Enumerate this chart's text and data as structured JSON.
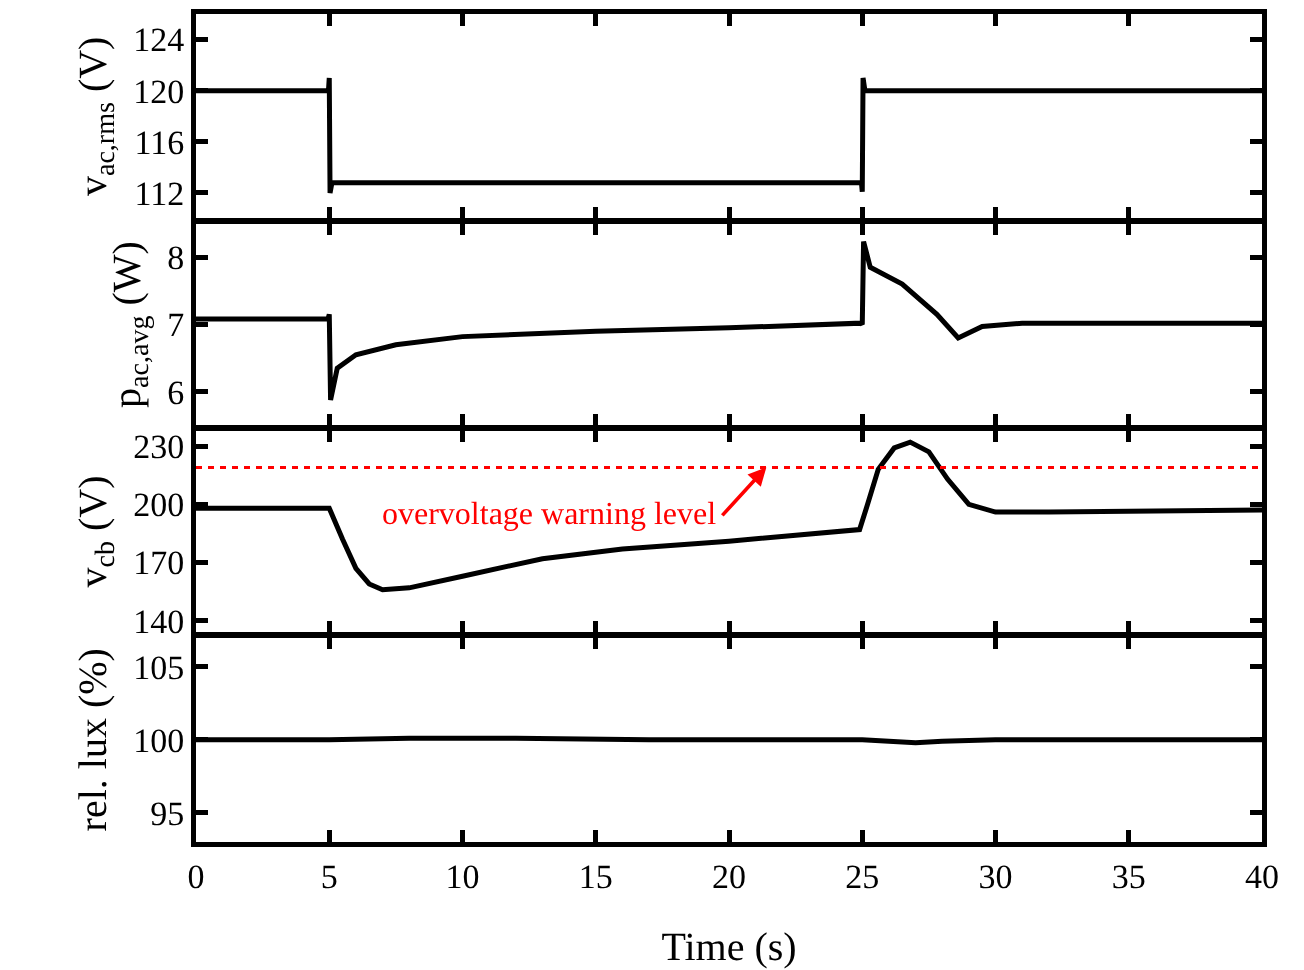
{
  "chart_data": [
    {
      "type": "line",
      "ylabel": "v$_{ac,rms}$ (V)",
      "tick_labels": "y",
      "xlim": [
        0,
        40
      ],
      "xticks": [
        0,
        5,
        10,
        15,
        20,
        25,
        30,
        35,
        40
      ],
      "ylim": [
        110,
        126
      ],
      "yticks": [
        112,
        116,
        120,
        124
      ],
      "x": [
        0,
        4.97,
        5,
        5.03,
        5.1,
        24.97,
        25,
        25.03,
        25.1,
        40
      ],
      "series": [
        {
          "color": "#000000",
          "values": [
            120,
            120,
            121,
            112,
            112.8,
            112.8,
            112.1,
            121,
            120,
            120
          ]
        }
      ]
    },
    {
      "type": "line",
      "ylabel": "p$_{ac,avg}$ (W)",
      "tick_labels": "y",
      "xlim": [
        0,
        40
      ],
      "xticks": [
        0,
        5,
        10,
        15,
        20,
        25,
        30,
        35,
        40
      ],
      "ylim": [
        5.5,
        8.5
      ],
      "yticks": [
        6,
        7,
        8
      ],
      "x": [
        0,
        4.95,
        5,
        5.05,
        5.3,
        6,
        7.5,
        10,
        15,
        20,
        24.95,
        25,
        25.05,
        25.3,
        26.5,
        27.8,
        28.6,
        29.5,
        31,
        35,
        40
      ],
      "series": [
        {
          "color": "#000000",
          "values": [
            7.08,
            7.08,
            7.15,
            5.88,
            6.35,
            6.55,
            6.7,
            6.82,
            6.9,
            6.95,
            7.02,
            7.0,
            8.23,
            7.85,
            7.6,
            7.15,
            6.8,
            6.97,
            7.02,
            7.02,
            7.02
          ]
        }
      ]
    },
    {
      "type": "line",
      "ylabel": "v$_{cb}$ (V)",
      "tick_labels": "y",
      "xlim": [
        0,
        40
      ],
      "xticks": [
        0,
        5,
        10,
        15,
        20,
        25,
        30,
        35,
        40
      ],
      "ylim": [
        134,
        238
      ],
      "yticks": [
        140,
        170,
        200,
        230
      ],
      "x": [
        0,
        5,
        5.5,
        6,
        6.5,
        7,
        8,
        10,
        13,
        16,
        20,
        24.9,
        25.2,
        25.6,
        26.2,
        26.8,
        27.5,
        28.2,
        29,
        30,
        32,
        40
      ],
      "series": [
        {
          "color": "#000000",
          "values": [
            198,
            198,
            182,
            167,
            159,
            156,
            157,
            163,
            172,
            177,
            181,
            187,
            200,
            218,
            229,
            232,
            227,
            213,
            200,
            196,
            196,
            197
          ]
        }
      ],
      "ref_lines": [
        {
          "axis": "y",
          "value": 219,
          "label": "overvoltage warning level",
          "color": "#ff0000",
          "line_style": "dotted"
        }
      ]
    },
    {
      "type": "line",
      "ylabel": "rel. lux (%)",
      "xlabel": "Time (s)",
      "xlim": [
        0,
        40
      ],
      "xticks": [
        0,
        5,
        10,
        15,
        20,
        25,
        30,
        35,
        40
      ],
      "ylim": [
        93,
        107
      ],
      "yticks": [
        95,
        100,
        105
      ],
      "x": [
        0,
        5,
        8,
        12,
        17,
        25,
        26,
        27,
        28,
        30,
        40
      ],
      "series": [
        {
          "color": "#000000",
          "values": [
            100,
            100,
            100.1,
            100.1,
            100,
            100,
            99.9,
            99.8,
            99.9,
            100,
            100
          ]
        }
      ]
    }
  ]
}
